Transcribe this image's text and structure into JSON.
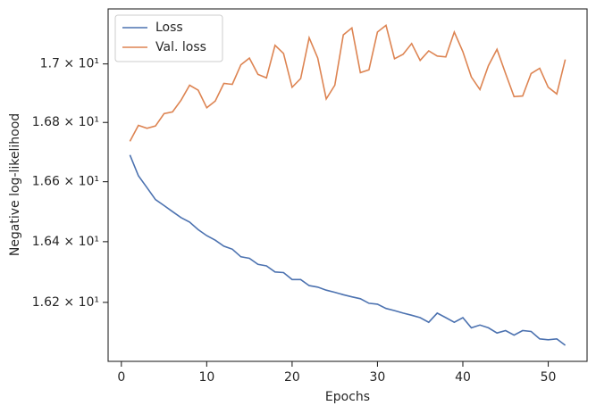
{
  "chart_data": {
    "type": "line",
    "xlabel": "Epochs",
    "ylabel": "Negative log-likelihood",
    "x": [
      1,
      2,
      3,
      4,
      5,
      6,
      7,
      8,
      9,
      10,
      11,
      12,
      13,
      14,
      15,
      16,
      17,
      18,
      19,
      20,
      21,
      22,
      23,
      24,
      25,
      26,
      27,
      28,
      29,
      30,
      31,
      32,
      33,
      34,
      35,
      36,
      37,
      38,
      39,
      40,
      41,
      42,
      43,
      44,
      45,
      46,
      47,
      48,
      49,
      50,
      51,
      52
    ],
    "series": [
      {
        "name": "Loss",
        "color": "#4c72b0",
        "values": [
          16.69,
          16.62,
          16.58,
          16.54,
          16.52,
          16.5,
          16.48,
          16.465,
          16.44,
          16.42,
          16.405,
          16.385,
          16.375,
          16.35,
          16.345,
          16.325,
          16.32,
          16.3,
          16.298,
          16.275,
          16.275,
          16.255,
          16.25,
          16.24,
          16.233,
          16.225,
          16.218,
          16.212,
          16.197,
          16.194,
          16.18,
          16.173,
          16.165,
          16.158,
          16.15,
          16.135,
          16.165,
          16.15,
          16.135,
          16.15,
          16.117,
          16.126,
          16.117,
          16.1,
          16.108,
          16.093,
          16.108,
          16.105,
          16.081,
          16.078,
          16.081,
          16.06
        ]
      },
      {
        "name": "Val. loss",
        "color": "#dd8452",
        "values": [
          16.736,
          16.79,
          16.78,
          16.788,
          16.83,
          16.836,
          16.876,
          16.927,
          16.91,
          16.85,
          16.873,
          16.933,
          16.93,
          16.997,
          17.02,
          16.964,
          16.952,
          17.064,
          17.036,
          16.92,
          16.95,
          17.09,
          17.02,
          16.88,
          16.927,
          17.1,
          17.124,
          16.97,
          16.98,
          17.11,
          17.133,
          17.018,
          17.033,
          17.07,
          17.012,
          17.045,
          17.027,
          17.024,
          17.11,
          17.042,
          16.955,
          16.912,
          16.994,
          17.05,
          16.967,
          16.888,
          16.89,
          16.967,
          16.985,
          16.92,
          16.897,
          17.015
        ]
      }
    ],
    "xlim": [
      -1.55,
      54.55
    ],
    "xticks": [
      0,
      10,
      20,
      30,
      40,
      50
    ],
    "ylim": [
      16.008,
      17.19
    ],
    "ylog": true,
    "yticks": [
      {
        "value": 16.2,
        "label": "1.62 × 10¹"
      },
      {
        "value": 16.4,
        "label": "1.64 × 10¹"
      },
      {
        "value": 16.6,
        "label": "1.66 × 10¹"
      },
      {
        "value": 16.8,
        "label": "1.68 × 10¹"
      },
      {
        "value": 17,
        "label": "1.7 × 10¹"
      }
    ],
    "legend": "upper left",
    "grid": false
  }
}
